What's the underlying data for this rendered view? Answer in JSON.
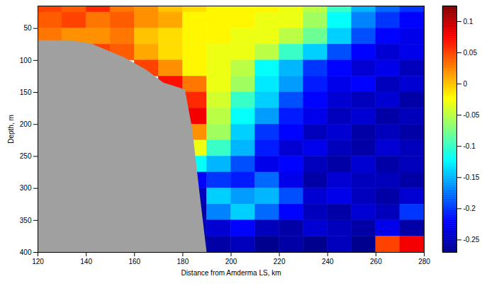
{
  "chart_data": {
    "type": "heatmap",
    "x_label": "Distance from Amderma LS, km",
    "y_label": "Depth, m",
    "xlim": [
      120,
      280
    ],
    "xticks": [
      120,
      140,
      160,
      180,
      200,
      220,
      240,
      260,
      280
    ],
    "ylim": [
      15,
      400
    ],
    "yticks": [
      50,
      100,
      150,
      200,
      250,
      300,
      350,
      400
    ],
    "x_edges": [
      120,
      130,
      140,
      150,
      160,
      170,
      180,
      190,
      200,
      210,
      220,
      230,
      240,
      250,
      260,
      270,
      280
    ],
    "depth_edges": [
      15,
      25,
      50,
      75,
      100,
      125,
      150,
      175,
      200,
      225,
      250,
      275,
      300,
      325,
      350,
      375,
      400
    ],
    "values": [
      [
        0.05,
        0.04,
        0.06,
        0.03,
        0.02,
        0,
        -0.01,
        -0.02,
        -0.02,
        -0.02,
        -0.03,
        -0.05,
        -0.1,
        -0.15,
        -0.18,
        -0.2
      ],
      [
        0.04,
        0.05,
        0.03,
        0.04,
        0.02,
        0.01,
        -0.02,
        -0.02,
        -0.02,
        -0.03,
        -0.03,
        -0.06,
        -0.12,
        -0.17,
        -0.2,
        -0.22
      ],
      [
        0.03,
        0.02,
        0.02,
        0.03,
        0,
        -0.01,
        -0.02,
        -0.02,
        -0.03,
        -0.03,
        -0.05,
        -0.08,
        -0.14,
        -0.19,
        -0.22,
        -0.23
      ],
      [
        null,
        null,
        0.05,
        0.04,
        0.01,
        -0.01,
        -0.02,
        -0.03,
        -0.03,
        -0.05,
        -0.1,
        -0.14,
        -0.19,
        -0.22,
        -0.24,
        -0.23
      ],
      [
        null,
        null,
        null,
        null,
        0.05,
        0.02,
        -0.02,
        -0.03,
        -0.05,
        -0.12,
        -0.15,
        -0.2,
        -0.22,
        -0.24,
        -0.23,
        -0.25
      ],
      [
        null,
        null,
        null,
        null,
        null,
        0.07,
        0.03,
        -0.03,
        -0.06,
        -0.13,
        -0.16,
        -0.21,
        -0.23,
        -0.22,
        -0.25,
        -0.24
      ],
      [
        null,
        null,
        null,
        null,
        null,
        0.08,
        0.06,
        -0.04,
        -0.1,
        -0.14,
        -0.19,
        -0.22,
        -0.24,
        -0.25,
        -0.24,
        -0.26
      ],
      [
        null,
        null,
        null,
        null,
        null,
        null,
        0.08,
        -0.05,
        -0.12,
        -0.16,
        -0.21,
        -0.23,
        -0.25,
        -0.24,
        -0.26,
        -0.25
      ],
      [
        null,
        null,
        null,
        null,
        null,
        null,
        0.02,
        -0.06,
        -0.14,
        -0.2,
        -0.22,
        -0.25,
        -0.24,
        -0.26,
        -0.25,
        -0.26
      ],
      [
        null,
        null,
        null,
        null,
        null,
        null,
        -0.03,
        -0.1,
        -0.15,
        -0.21,
        -0.24,
        -0.23,
        -0.25,
        -0.26,
        -0.24,
        -0.25
      ],
      [
        null,
        null,
        null,
        null,
        null,
        null,
        -0.12,
        -0.15,
        -0.19,
        -0.23,
        -0.22,
        -0.25,
        -0.26,
        -0.24,
        -0.26,
        -0.25
      ],
      [
        null,
        null,
        null,
        null,
        null,
        null,
        -0.22,
        -0.2,
        -0.21,
        -0.18,
        -0.23,
        -0.26,
        -0.24,
        -0.25,
        -0.25,
        -0.26
      ],
      [
        null,
        null,
        null,
        null,
        null,
        null,
        -0.25,
        -0.14,
        -0.16,
        -0.15,
        -0.19,
        -0.24,
        -0.23,
        -0.25,
        -0.26,
        -0.24
      ],
      [
        null,
        null,
        null,
        null,
        null,
        null,
        -0.26,
        -0.17,
        -0.14,
        -0.18,
        -0.22,
        -0.25,
        -0.26,
        -0.24,
        -0.25,
        -0.2
      ],
      [
        null,
        null,
        null,
        null,
        null,
        null,
        -0.25,
        -0.24,
        -0.22,
        -0.25,
        -0.26,
        -0.24,
        -0.25,
        -0.26,
        -0.23,
        -0.26
      ],
      [
        null,
        null,
        null,
        null,
        null,
        null,
        -0.27,
        -0.26,
        -0.25,
        -0.27,
        -0.26,
        -0.27,
        -0.25,
        -0.27,
        0.05,
        0.08
      ]
    ],
    "colorbar": {
      "lim": [
        -0.27,
        0.125
      ],
      "ticks": [
        -0.25,
        -0.2,
        -0.15,
        -0.1,
        -0.05,
        0,
        0.05,
        0.1
      ]
    },
    "bathymetry": {
      "x": [
        120,
        133,
        142,
        156,
        165,
        172,
        181,
        184,
        187,
        190
      ],
      "depth": [
        69,
        69,
        74,
        96,
        115,
        135,
        146,
        206,
        305,
        400
      ],
      "color": "#a0a0a0"
    }
  }
}
